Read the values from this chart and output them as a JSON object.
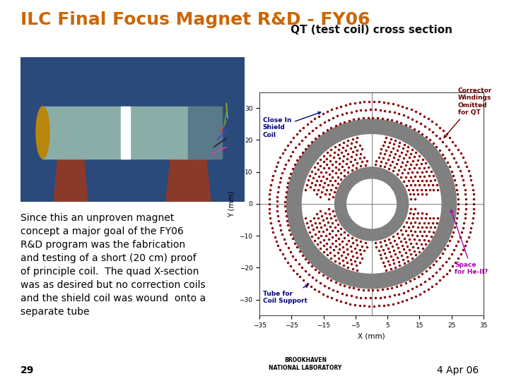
{
  "title": "ILC Final Focus Magnet R&D - FY06",
  "title_color": "#CC6600",
  "title_fontsize": 18,
  "bg_color": "#FFFFFF",
  "qt_title": "QT (test coil) cross section",
  "qt_title_fontsize": 11,
  "body_text": "Since this an unproven magnet\nconcept a major goal of the FY06\nR&D program was the fabrication\nand testing of a short (20 cm) proof\nof principle coil.  The quad X-section\nwas as desired but no correction coils\nand the shield coil was wound  onto a\nseparate tube",
  "body_fontsize": 10,
  "page_num": "29",
  "date_text": "4 Apr 06",
  "xlabel": "X (mm)",
  "ylabel": "Y (mm)",
  "xlim": [
    -35,
    35
  ],
  "ylim": [
    -35,
    35
  ],
  "xticks": [
    -35.0,
    -25.0,
    -15.0,
    -5.0,
    5.0,
    15.0,
    25.0,
    35.0
  ],
  "yticks": [
    -30.0,
    -20.0,
    -10.0,
    0.0,
    10.0,
    20.0,
    30.0
  ],
  "inner_tube_inner_r": 8.0,
  "inner_tube_outer_r": 11.5,
  "outer_tube_inner_r": 22.0,
  "outer_tube_outer_r": 26.5,
  "coil_inner_r": 12.0,
  "coil_outer_r": 21.5,
  "shield_inner_r": 27.0,
  "shield_outer_r": 32.0,
  "dot_color": "#8B0000",
  "tube_color": "#808080",
  "dot_size": 2.5,
  "photo_bg": "#2B4A7C",
  "photo_magnet_color": "#8AADA8",
  "photo_support_color": "#8B3A2A"
}
